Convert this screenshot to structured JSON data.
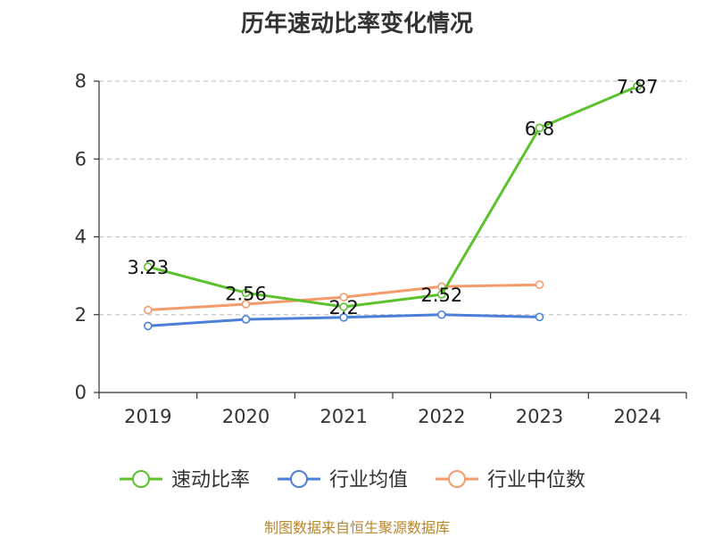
{
  "chart_data": {
    "type": "line",
    "title": "历年速动比率变化情况",
    "categories": [
      "2019",
      "2020",
      "2021",
      "2022",
      "2023",
      "2024"
    ],
    "ylim": [
      0,
      8
    ],
    "yticks": [
      0,
      2,
      4,
      6,
      8
    ],
    "grid": true,
    "legend_position": "bottom",
    "series": [
      {
        "name": "速动比率",
        "color": "#5cc22b",
        "values": [
          3.23,
          2.56,
          2.2,
          2.52,
          6.8,
          7.87
        ],
        "labels": [
          "3.23",
          "2.56",
          "2.2",
          "2.52",
          "6.8",
          "7.87"
        ]
      },
      {
        "name": "行业均值",
        "color": "#4b7fd8",
        "values": [
          1.71,
          1.88,
          1.93,
          2.0,
          1.94,
          null
        ]
      },
      {
        "name": "行业中位数",
        "color": "#f59a6a",
        "values": [
          2.12,
          2.27,
          2.45,
          2.72,
          2.77,
          null
        ]
      }
    ],
    "source": "制图数据来自恒生聚源数据库"
  }
}
